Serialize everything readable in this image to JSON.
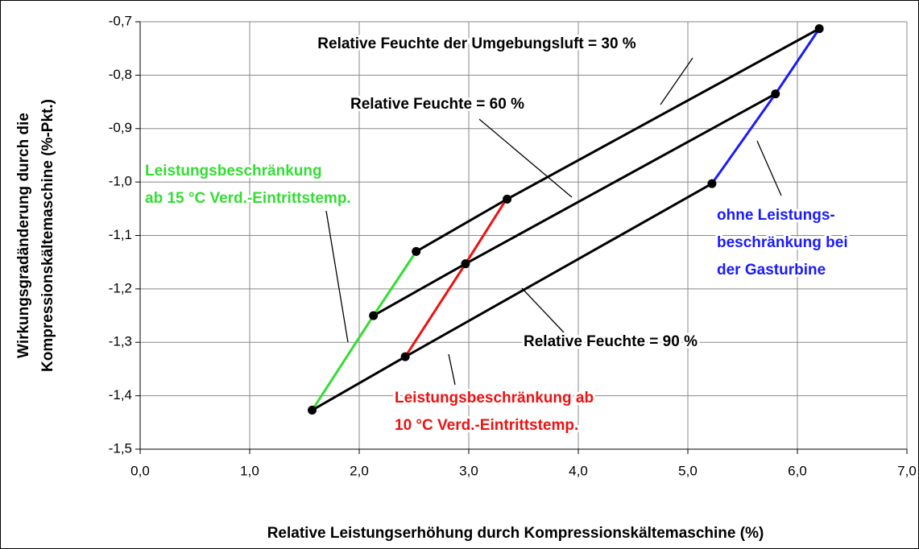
{
  "chart_data": {
    "type": "line",
    "xlabel": "Relative Leistungserhöhung durch Kompressionskältemaschine (%)",
    "ylabel": [
      "Wirkungsgradänderung durch die",
      "Kompressionskältemaschine (%-Pkt.)"
    ],
    "xlim": [
      0,
      7
    ],
    "ylim": [
      -1.5,
      -0.7
    ],
    "xticks": [
      {
        "value": 0,
        "label": "0,0"
      },
      {
        "value": 1,
        "label": "1,0"
      },
      {
        "value": 2,
        "label": "2,0"
      },
      {
        "value": 3,
        "label": "3,0"
      },
      {
        "value": 4,
        "label": "4,0"
      },
      {
        "value": 5,
        "label": "5,0"
      },
      {
        "value": 6,
        "label": "6,0"
      },
      {
        "value": 7,
        "label": "7,0"
      }
    ],
    "yticks": [
      {
        "value": -1.5,
        "label": "-1,5"
      },
      {
        "value": -1.4,
        "label": "-1,4"
      },
      {
        "value": -1.3,
        "label": "-1,3"
      },
      {
        "value": -1.2,
        "label": "-1,2"
      },
      {
        "value": -1.1,
        "label": "-1,1"
      },
      {
        "value": -1.0,
        "label": "-1,0"
      },
      {
        "value": -0.9,
        "label": "-0,9"
      },
      {
        "value": -0.8,
        "label": "-0,8"
      },
      {
        "value": -0.7,
        "label": "-0,7"
      }
    ],
    "grid": true,
    "series": [
      {
        "color": "#000000",
        "marker": true,
        "x": [
          2.52,
          3.35,
          6.2
        ],
        "values": [
          -1.13,
          -1.032,
          -0.713
        ]
      },
      {
        "color": "#000000",
        "marker": true,
        "x": [
          2.13,
          2.97,
          5.8
        ],
        "values": [
          -1.25,
          -1.153,
          -0.835
        ]
      },
      {
        "color": "#000000",
        "marker": true,
        "x": [
          1.57,
          2.42,
          5.22
        ],
        "values": [
          -1.427,
          -1.327,
          -1.003
        ]
      },
      {
        "color": "#33dd33",
        "marker": false,
        "x": [
          1.57,
          2.13,
          2.52
        ],
        "values": [
          -1.427,
          -1.25,
          -1.13
        ]
      },
      {
        "color": "#ee1111",
        "marker": false,
        "x": [
          2.42,
          2.97,
          3.35
        ],
        "values": [
          -1.327,
          -1.153,
          -1.03
        ]
      },
      {
        "color": "#1a1aff",
        "marker": false,
        "x": [
          5.22,
          5.8,
          6.2
        ],
        "values": [
          -1.003,
          -0.835,
          -0.713
        ]
      }
    ],
    "annotations": [
      {
        "lines": [
          "Relative Feuchte der Umgebungsluft = 30 %"
        ],
        "color": "#000000"
      },
      {
        "lines": [
          "Relative Feuchte = 60 %"
        ],
        "color": "#000000"
      },
      {
        "lines": [
          "Relative Feuchte = 90 %"
        ],
        "color": "#000000"
      },
      {
        "lines": [
          "Leistungsbeschränkung",
          "ab 15 °C Verd.-Eintrittstemp."
        ],
        "color": "#33dd33"
      },
      {
        "lines": [
          "ohne Leistungs-",
          "beschränkung bei",
          "der Gasturbine"
        ],
        "color": "#1a1aff"
      },
      {
        "lines": [
          "Leistungsbeschränkung ab",
          "10 °C Verd.-Eintrittstemp."
        ],
        "color": "#ee1111"
      }
    ]
  }
}
